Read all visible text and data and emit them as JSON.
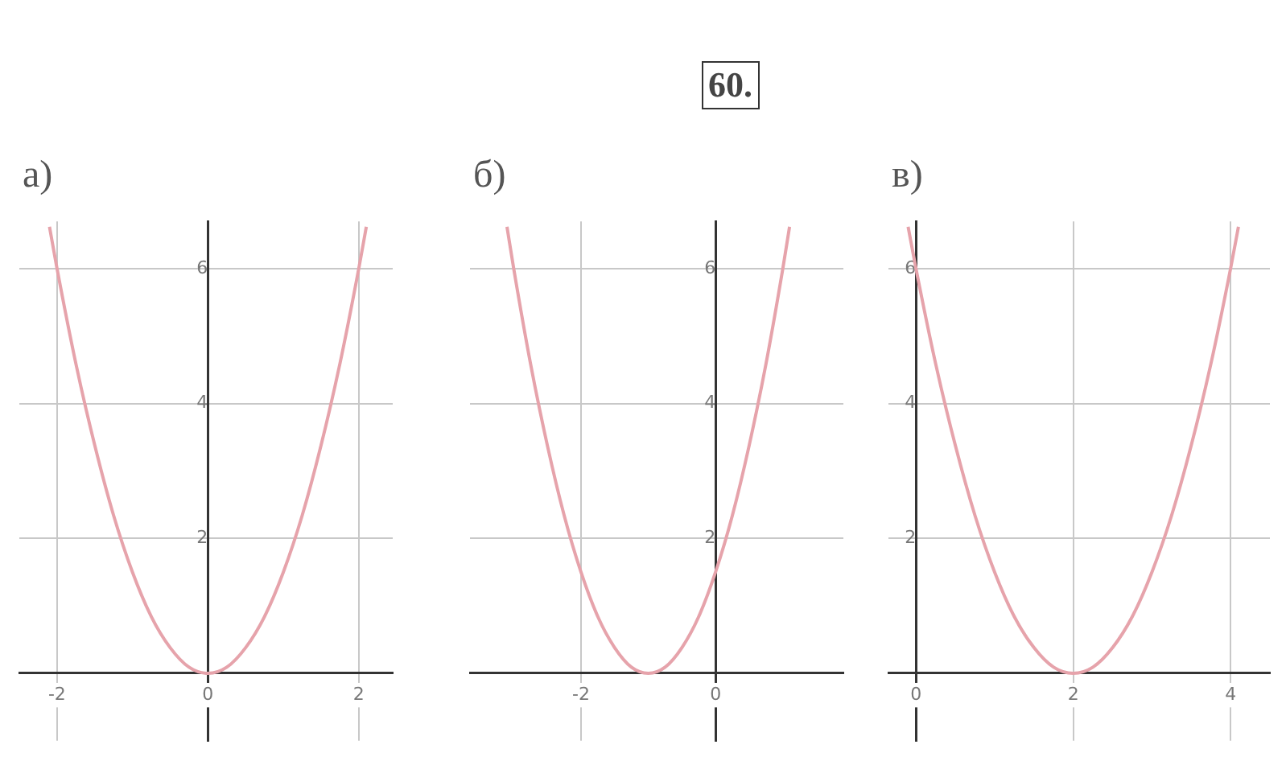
{
  "chart_data": [
    {
      "type": "line",
      "title": "а)",
      "xlim": [
        -2.5,
        2.45
      ],
      "ylim": [
        -1,
        6.7
      ],
      "xticks": [
        -2,
        0,
        2
      ],
      "yticks": [
        2,
        4,
        6
      ],
      "grid": true,
      "marker": "none",
      "line_style": "solid",
      "series": [
        {
          "color": "#e6a3ab",
          "x": [
            -2.1,
            -2,
            -1.75,
            -1.5,
            -1.25,
            -1,
            -0.75,
            -0.5,
            -0.25,
            0,
            0.25,
            0.5,
            0.75,
            1,
            1.25,
            1.5,
            1.75,
            2,
            2.1
          ],
          "values": [
            6.62,
            6,
            4.59,
            3.38,
            2.34,
            1.5,
            0.84,
            0.38,
            0.09,
            0,
            0.09,
            0.38,
            0.84,
            1.5,
            2.34,
            3.38,
            4.59,
            6,
            6.62
          ]
        }
      ]
    },
    {
      "type": "line",
      "title": "б)",
      "annotations": [
        "60."
      ],
      "xlim": [
        -3.65,
        1.9
      ],
      "ylim": [
        -1,
        6.7
      ],
      "xticks": [
        -2,
        0
      ],
      "yticks": [
        2,
        4,
        6
      ],
      "grid": true,
      "marker": "none",
      "line_style": "solid",
      "series": [
        {
          "color": "#e6a3ab",
          "x": [
            -3.1,
            -3,
            -2.75,
            -2.5,
            -2.25,
            -2,
            -1.75,
            -1.5,
            -1.25,
            -1,
            -0.75,
            -0.5,
            -0.25,
            0,
            0.25,
            0.5,
            0.75,
            1,
            1.1
          ],
          "values": [
            6.62,
            6,
            4.59,
            3.38,
            2.34,
            1.5,
            0.84,
            0.38,
            0.09,
            0,
            0.09,
            0.38,
            0.84,
            1.5,
            2.34,
            3.38,
            4.59,
            6,
            6.62
          ]
        }
      ]
    },
    {
      "type": "line",
      "title": "в)",
      "xlim": [
        -0.35,
        4.5
      ],
      "ylim": [
        -1,
        6.7
      ],
      "xticks": [
        0,
        2,
        4
      ],
      "yticks": [
        2,
        4,
        6
      ],
      "grid": true,
      "marker": "none",
      "line_style": "solid",
      "series": [
        {
          "color": "#e6a3ab",
          "x": [
            -0.1,
            0,
            0.25,
            0.5,
            0.75,
            1,
            1.25,
            1.5,
            1.75,
            2,
            2.25,
            2.5,
            2.75,
            3,
            3.25,
            3.5,
            3.75,
            4,
            4.1
          ],
          "values": [
            6.62,
            6,
            4.59,
            3.38,
            2.34,
            1.5,
            0.84,
            0.38,
            0.09,
            0,
            0.09,
            0.38,
            0.84,
            1.5,
            2.34,
            3.38,
            4.59,
            6,
            6.62
          ]
        }
      ]
    }
  ]
}
